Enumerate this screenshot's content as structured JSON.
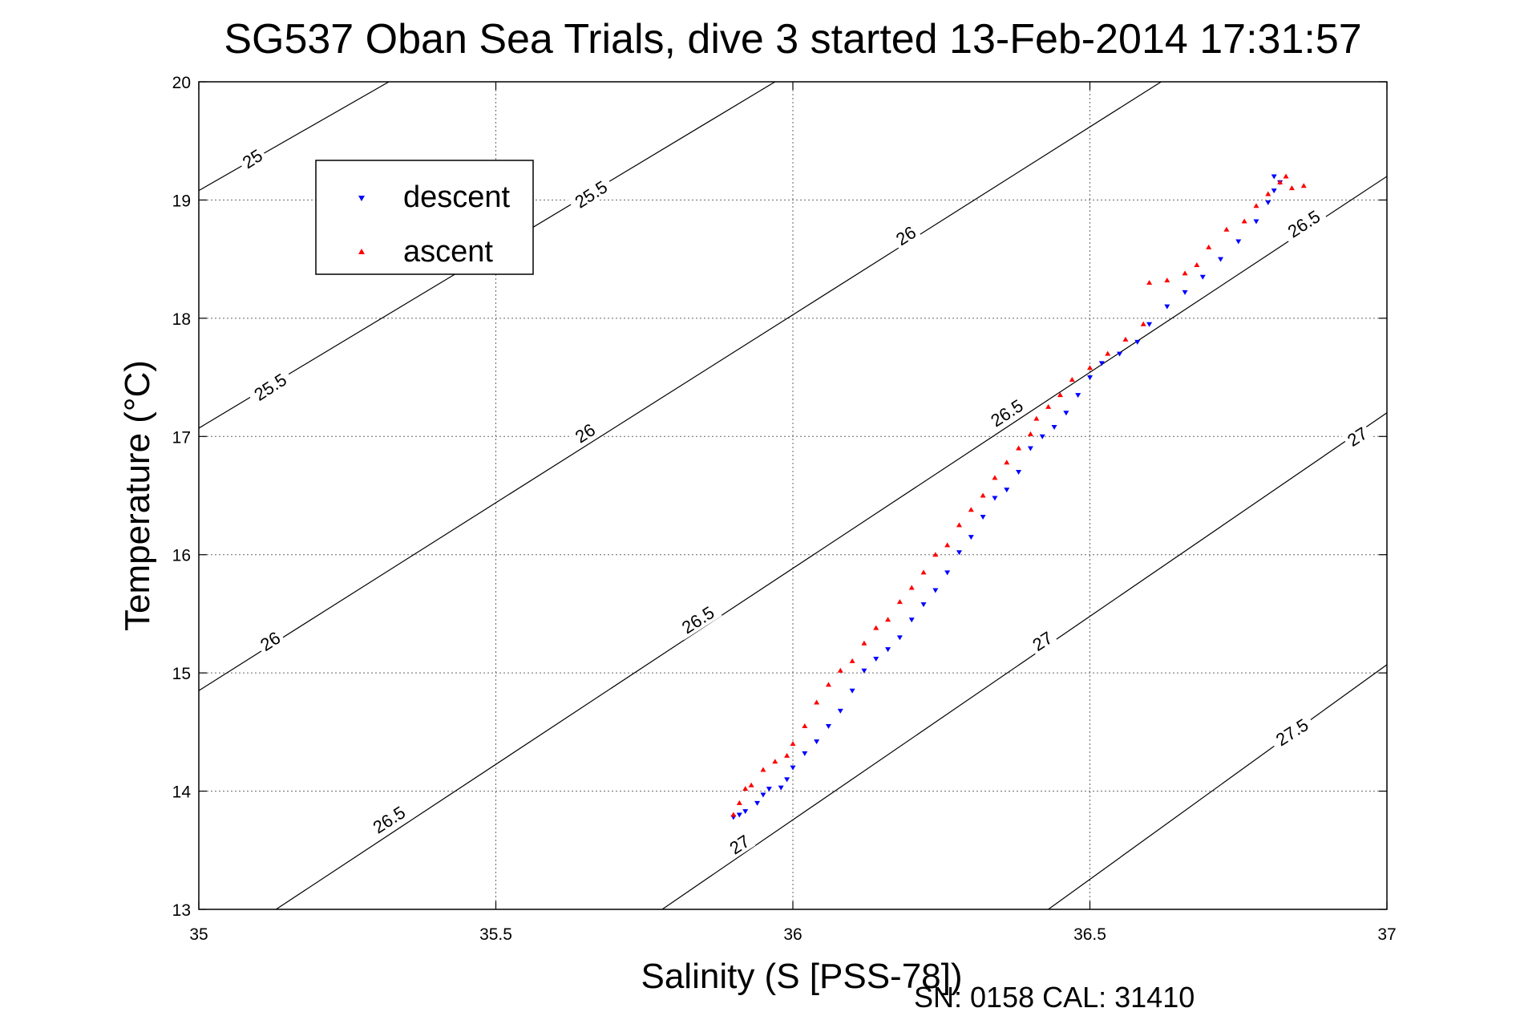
{
  "chart_data": {
    "type": "scatter",
    "title": "SG537 Oban Sea Trials, dive 3 started 13-Feb-2014 17:31:57",
    "xlabel": "Salinity (S [PSS-78])",
    "ylabel": "Temperature (°C)",
    "xlim": [
      35,
      37
    ],
    "ylim": [
      13,
      20
    ],
    "x_ticks": [
      35,
      35.5,
      36,
      36.5,
      37
    ],
    "x_tick_labels": [
      "35",
      "35.5",
      "36",
      "36.5",
      "37"
    ],
    "y_ticks": [
      13,
      14,
      15,
      16,
      17,
      18,
      19,
      20
    ],
    "y_tick_labels": [
      "13",
      "14",
      "15",
      "16",
      "17",
      "18",
      "19",
      "20"
    ],
    "grid": true,
    "legend_position": "top-left",
    "footer_text": "SN: 0158  CAL: 31410",
    "density_contours": [
      {
        "sigma": "25",
        "points": [
          [
            35.0,
            19.08
          ],
          [
            35.32,
            20.0
          ]
        ]
      },
      {
        "sigma": "25.5",
        "points": [
          [
            35.0,
            17.07
          ],
          [
            35.97,
            20.0
          ]
        ]
      },
      {
        "sigma": "26",
        "points": [
          [
            35.0,
            14.85
          ],
          [
            36.62,
            20.0
          ]
        ]
      },
      {
        "sigma": "26.5",
        "points": [
          [
            35.13,
            13.0
          ],
          [
            37.0,
            19.2
          ]
        ]
      },
      {
        "sigma": "27",
        "points": [
          [
            35.78,
            13.0
          ],
          [
            37.0,
            17.2
          ]
        ]
      },
      {
        "sigma": "27.5",
        "points": [
          [
            36.43,
            13.0
          ],
          [
            37.0,
            15.07
          ]
        ]
      }
    ],
    "contour_labels": [
      {
        "text": "25",
        "s": 35.09,
        "t": 19.35
      },
      {
        "text": "25.5",
        "s": 35.66,
        "t": 19.05
      },
      {
        "text": "26",
        "s": 36.19,
        "t": 18.7
      },
      {
        "text": "26.5",
        "s": 36.86,
        "t": 18.8
      },
      {
        "text": "25.5",
        "s": 35.12,
        "t": 17.42
      },
      {
        "text": "26",
        "s": 35.65,
        "t": 17.03
      },
      {
        "text": "26.5",
        "s": 36.36,
        "t": 17.2
      },
      {
        "text": "27",
        "s": 36.95,
        "t": 17.0
      },
      {
        "text": "26",
        "s": 35.12,
        "t": 15.27
      },
      {
        "text": "26.5",
        "s": 35.84,
        "t": 15.45
      },
      {
        "text": "27",
        "s": 36.42,
        "t": 15.27
      },
      {
        "text": "26.5",
        "s": 35.32,
        "t": 13.76
      },
      {
        "text": "27",
        "s": 35.91,
        "t": 13.55
      },
      {
        "text": "27.5",
        "s": 36.84,
        "t": 14.5
      }
    ],
    "series": [
      {
        "name": "descent",
        "color": "#0000ff",
        "marker": "triangle-down",
        "points": [
          [
            35.9,
            13.78
          ],
          [
            35.91,
            13.8
          ],
          [
            35.92,
            13.83
          ],
          [
            35.94,
            13.9
          ],
          [
            35.95,
            13.97
          ],
          [
            35.96,
            14.02
          ],
          [
            35.98,
            14.03
          ],
          [
            35.99,
            14.1
          ],
          [
            36.0,
            14.2
          ],
          [
            36.02,
            14.32
          ],
          [
            36.04,
            14.42
          ],
          [
            36.06,
            14.55
          ],
          [
            36.08,
            14.68
          ],
          [
            36.1,
            14.85
          ],
          [
            36.12,
            15.02
          ],
          [
            36.14,
            15.12
          ],
          [
            36.16,
            15.2
          ],
          [
            36.18,
            15.3
          ],
          [
            36.2,
            15.45
          ],
          [
            36.22,
            15.58
          ],
          [
            36.24,
            15.7
          ],
          [
            36.26,
            15.85
          ],
          [
            36.28,
            16.02
          ],
          [
            36.3,
            16.15
          ],
          [
            36.32,
            16.32
          ],
          [
            36.34,
            16.48
          ],
          [
            36.36,
            16.55
          ],
          [
            36.38,
            16.7
          ],
          [
            36.4,
            16.9
          ],
          [
            36.42,
            17.0
          ],
          [
            36.44,
            17.08
          ],
          [
            36.46,
            17.2
          ],
          [
            36.48,
            17.35
          ],
          [
            36.5,
            17.5
          ],
          [
            36.52,
            17.62
          ],
          [
            36.55,
            17.7
          ],
          [
            36.58,
            17.8
          ],
          [
            36.6,
            17.95
          ],
          [
            36.63,
            18.1
          ],
          [
            36.66,
            18.22
          ],
          [
            36.69,
            18.35
          ],
          [
            36.72,
            18.5
          ],
          [
            36.75,
            18.65
          ],
          [
            36.78,
            18.82
          ],
          [
            36.8,
            18.98
          ],
          [
            36.81,
            19.08
          ],
          [
            36.82,
            19.15
          ],
          [
            36.81,
            19.2
          ]
        ]
      },
      {
        "name": "ascent",
        "color": "#ff0000",
        "marker": "triangle-up",
        "points": [
          [
            35.9,
            13.8
          ],
          [
            35.91,
            13.9
          ],
          [
            35.92,
            14.02
          ],
          [
            35.93,
            14.05
          ],
          [
            35.95,
            14.18
          ],
          [
            35.97,
            14.25
          ],
          [
            35.99,
            14.3
          ],
          [
            36.0,
            14.4
          ],
          [
            36.02,
            14.55
          ],
          [
            36.04,
            14.75
          ],
          [
            36.06,
            14.9
          ],
          [
            36.08,
            15.02
          ],
          [
            36.1,
            15.1
          ],
          [
            36.12,
            15.25
          ],
          [
            36.14,
            15.38
          ],
          [
            36.16,
            15.45
          ],
          [
            36.18,
            15.6
          ],
          [
            36.2,
            15.72
          ],
          [
            36.22,
            15.85
          ],
          [
            36.24,
            16.0
          ],
          [
            36.26,
            16.08
          ],
          [
            36.28,
            16.25
          ],
          [
            36.3,
            16.38
          ],
          [
            36.32,
            16.5
          ],
          [
            36.34,
            16.65
          ],
          [
            36.36,
            16.78
          ],
          [
            36.38,
            16.9
          ],
          [
            36.4,
            17.02
          ],
          [
            36.41,
            17.15
          ],
          [
            36.43,
            17.25
          ],
          [
            36.45,
            17.35
          ],
          [
            36.47,
            17.48
          ],
          [
            36.5,
            17.58
          ],
          [
            36.53,
            17.7
          ],
          [
            36.56,
            17.82
          ],
          [
            36.59,
            17.95
          ],
          [
            36.6,
            18.3
          ],
          [
            36.63,
            18.32
          ],
          [
            36.66,
            18.38
          ],
          [
            36.68,
            18.45
          ],
          [
            36.7,
            18.6
          ],
          [
            36.73,
            18.75
          ],
          [
            36.76,
            18.82
          ],
          [
            36.78,
            18.95
          ],
          [
            36.8,
            19.05
          ],
          [
            36.82,
            19.15
          ],
          [
            36.84,
            19.1
          ],
          [
            36.86,
            19.12
          ],
          [
            36.83,
            19.2
          ]
        ]
      }
    ]
  }
}
